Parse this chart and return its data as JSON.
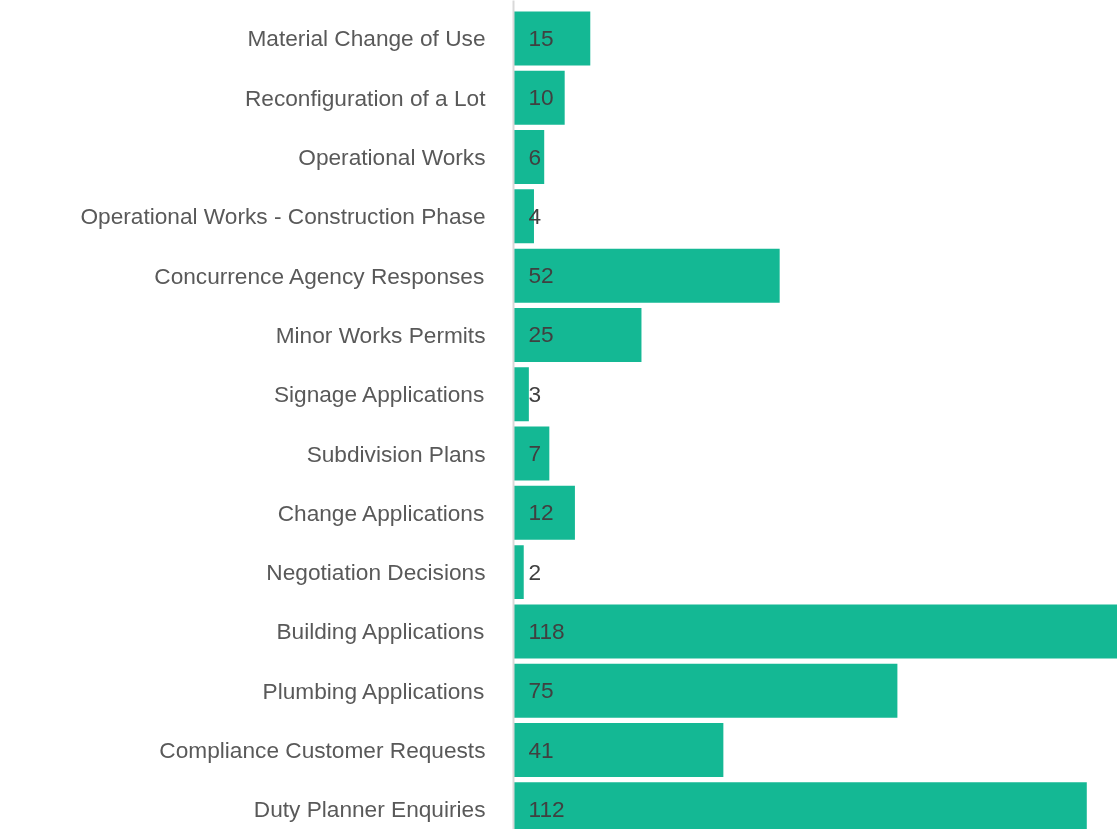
{
  "chart_data": {
    "type": "bar",
    "orientation": "horizontal",
    "categories": [
      "Material Change of Use",
      "Reconfiguration of a Lot",
      "Operational Works",
      "Operational Works - Construction Phase",
      "Concurrence Agency Responses",
      "Minor Works Permits",
      "Signage Applications",
      "Subdivision Plans",
      "Change Applications",
      "Negotiation Decisions",
      "Building Applications",
      "Plumbing Applications",
      "Compliance Customer Requests",
      "Duty Planner Enquiries"
    ],
    "values": [
      15,
      10,
      6,
      4,
      52,
      25,
      3,
      7,
      12,
      2,
      118,
      75,
      41,
      112
    ],
    "color": "#14b894",
    "data_labels": true
  }
}
